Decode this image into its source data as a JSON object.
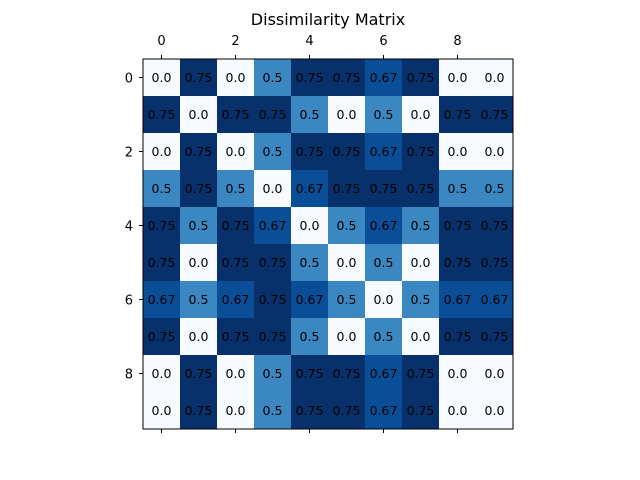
{
  "chart_data": {
    "type": "heatmap",
    "title": "Dissimilarity Matrix",
    "colormap": "Blues",
    "x_ticks": [
      "0",
      "2",
      "4",
      "6",
      "8"
    ],
    "y_ticks": [
      "0",
      "2",
      "4",
      "6",
      "8"
    ],
    "x_axis_position": "top",
    "matrix": [
      [
        0.0,
        0.75,
        0.0,
        0.5,
        0.75,
        0.75,
        0.67,
        0.75,
        0.0,
        0.0
      ],
      [
        0.75,
        0.0,
        0.75,
        0.75,
        0.5,
        0.0,
        0.5,
        0.0,
        0.75,
        0.75
      ],
      [
        0.0,
        0.75,
        0.0,
        0.5,
        0.75,
        0.75,
        0.67,
        0.75,
        0.0,
        0.0
      ],
      [
        0.5,
        0.75,
        0.5,
        0.0,
        0.67,
        0.75,
        0.75,
        0.75,
        0.5,
        0.5
      ],
      [
        0.75,
        0.5,
        0.75,
        0.67,
        0.0,
        0.5,
        0.67,
        0.5,
        0.75,
        0.75
      ],
      [
        0.75,
        0.0,
        0.75,
        0.75,
        0.5,
        0.0,
        0.5,
        0.0,
        0.75,
        0.75
      ],
      [
        0.67,
        0.5,
        0.67,
        0.75,
        0.67,
        0.5,
        0.0,
        0.5,
        0.67,
        0.67
      ],
      [
        0.75,
        0.0,
        0.75,
        0.75,
        0.5,
        0.0,
        0.5,
        0.0,
        0.75,
        0.75
      ],
      [
        0.0,
        0.75,
        0.0,
        0.5,
        0.75,
        0.75,
        0.67,
        0.75,
        0.0,
        0.0
      ],
      [
        0.0,
        0.75,
        0.0,
        0.5,
        0.75,
        0.75,
        0.67,
        0.75,
        0.0,
        0.0
      ]
    ],
    "cell_labels": [
      [
        "0.0",
        "0.75",
        "0.0",
        "0.5",
        "0.75",
        "0.75",
        "0.67",
        "0.75",
        "0.0",
        "0.0"
      ],
      [
        "0.75",
        "0.0",
        "0.75",
        "0.75",
        "0.5",
        "0.0",
        "0.5",
        "0.0",
        "0.75",
        "0.75"
      ],
      [
        "0.0",
        "0.75",
        "0.0",
        "0.5",
        "0.75",
        "0.75",
        "0.67",
        "0.75",
        "0.0",
        "0.0"
      ],
      [
        "0.5",
        "0.75",
        "0.5",
        "0.0",
        "0.67",
        "0.75",
        "0.75",
        "0.75",
        "0.5",
        "0.5"
      ],
      [
        "0.75",
        "0.5",
        "0.75",
        "0.67",
        "0.0",
        "0.5",
        "0.67",
        "0.5",
        "0.75",
        "0.75"
      ],
      [
        "0.75",
        "0.0",
        "0.75",
        "0.75",
        "0.5",
        "0.0",
        "0.5",
        "0.0",
        "0.75",
        "0.75"
      ],
      [
        "0.67",
        "0.5",
        "0.67",
        "0.75",
        "0.67",
        "0.5",
        "0.0",
        "0.5",
        "0.67",
        "0.67"
      ],
      [
        "0.75",
        "0.0",
        "0.75",
        "0.75",
        "0.5",
        "0.0",
        "0.5",
        "0.0",
        "0.75",
        "0.75"
      ],
      [
        "0.0",
        "0.75",
        "0.0",
        "0.5",
        "0.75",
        "0.75",
        "0.67",
        "0.75",
        "0.0",
        "0.0"
      ],
      [
        "0.0",
        "0.75",
        "0.0",
        "0.5",
        "0.75",
        "0.75",
        "0.67",
        "0.75",
        "0.0",
        "0.0"
      ]
    ],
    "value_colors": {
      "0.0": "#f7fbff",
      "0.5": "#3a87c1",
      "0.67": "#0b4e98",
      "0.75": "#08306b"
    },
    "grid": false,
    "legend": "none"
  }
}
